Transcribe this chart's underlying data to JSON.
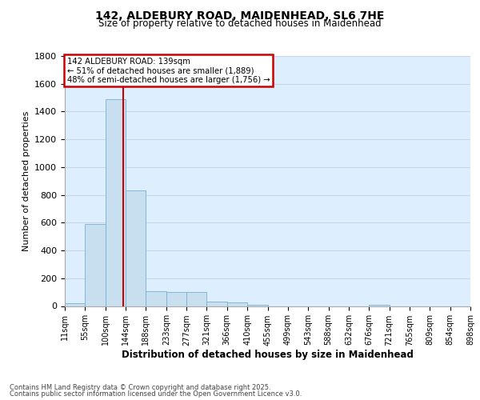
{
  "title_line1": "142, ALDEBURY ROAD, MAIDENHEAD, SL6 7HE",
  "title_line2": "Size of property relative to detached houses in Maidenhead",
  "xlabel": "Distribution of detached houses by size in Maidenhead",
  "ylabel": "Number of detached properties",
  "footer_line1": "Contains HM Land Registry data © Crown copyright and database right 2025.",
  "footer_line2": "Contains public sector information licensed under the Open Government Licence v3.0.",
  "annotation_line1": "142 ALDEBURY ROAD: 139sqm",
  "annotation_line2": "← 51% of detached houses are smaller (1,889)",
  "annotation_line3": "48% of semi-detached houses are larger (1,756) →",
  "property_size": 139,
  "ylim": [
    0,
    1800
  ],
  "bar_color": "#c8dff0",
  "bar_edge_color": "#7ab0d4",
  "grid_color": "#c8d8e8",
  "bg_color": "#ddeeff",
  "bins": [
    11,
    55,
    100,
    144,
    188,
    233,
    277,
    321,
    366,
    410,
    455,
    499,
    543,
    588,
    632,
    676,
    721,
    765,
    809,
    854,
    898
  ],
  "counts": [
    20,
    590,
    1490,
    830,
    105,
    100,
    100,
    30,
    25,
    10,
    0,
    0,
    0,
    0,
    0,
    8,
    0,
    0,
    0,
    0
  ],
  "red_line_color": "#cc0000",
  "annotation_box_color": "#cc0000",
  "tick_labels": [
    "11sqm",
    "55sqm",
    "100sqm",
    "144sqm",
    "188sqm",
    "233sqm",
    "277sqm",
    "321sqm",
    "366sqm",
    "410sqm",
    "455sqm",
    "499sqm",
    "543sqm",
    "588sqm",
    "632sqm",
    "676sqm",
    "721sqm",
    "765sqm",
    "809sqm",
    "854sqm",
    "898sqm"
  ]
}
